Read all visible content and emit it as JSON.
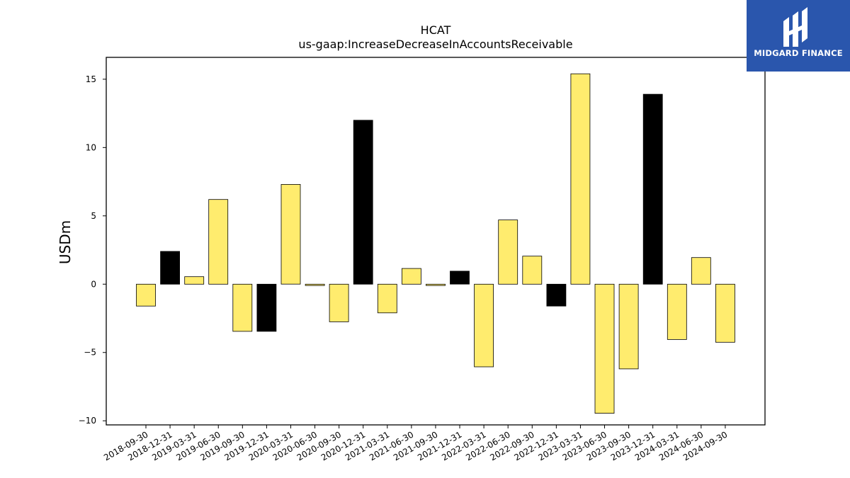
{
  "header": {
    "title": "HCAT",
    "subtitle": "us-gaap:IncreaseDecreaseInAccountsReceivable"
  },
  "logo": {
    "text": "MIDGARD FINANCE",
    "background": "#2a56ad"
  },
  "chart_data": {
    "type": "bar",
    "title": "HCAT",
    "subtitle": "us-gaap:IncreaseDecreaseInAccountsReceivable",
    "xlabel": "",
    "ylabel": "USDm",
    "ylim": [
      -10.3,
      16.6
    ],
    "yticks": [
      -10,
      -5,
      0,
      5,
      10,
      15
    ],
    "grid": false,
    "categories": [
      "2018-09-30",
      "2018-12-31",
      "2019-03-31",
      "2019-06-30",
      "2019-09-30",
      "2019-12-31",
      "2020-03-31",
      "2020-06-30",
      "2020-09-30",
      "2020-12-31",
      "2021-03-31",
      "2021-06-30",
      "2021-09-30",
      "2021-12-31",
      "2022-03-31",
      "2022-06-30",
      "2022-09-30",
      "2022-12-31",
      "2023-03-31",
      "2023-06-30",
      "2023-09-30",
      "2023-12-31",
      "2024-03-31",
      "2024-06-30",
      "2024-09-30"
    ],
    "values": [
      -1.6,
      2.4,
      0.55,
      6.2,
      -3.45,
      -3.45,
      7.3,
      -0.1,
      -2.75,
      12.0,
      -2.1,
      1.15,
      -0.1,
      0.95,
      -6.05,
      4.7,
      2.05,
      -1.6,
      15.4,
      -9.45,
      -6.2,
      13.9,
      -4.05,
      1.95,
      -4.25
    ],
    "bar_colors": [
      "#ffec6e",
      "#000000",
      "#ffec6e",
      "#ffec6e",
      "#ffec6e",
      "#000000",
      "#ffec6e",
      "#ffec6e",
      "#ffec6e",
      "#000000",
      "#ffec6e",
      "#ffec6e",
      "#ffec6e",
      "#000000",
      "#ffec6e",
      "#ffec6e",
      "#ffec6e",
      "#000000",
      "#ffec6e",
      "#ffec6e",
      "#ffec6e",
      "#000000",
      "#ffec6e",
      "#ffec6e",
      "#ffec6e"
    ]
  }
}
